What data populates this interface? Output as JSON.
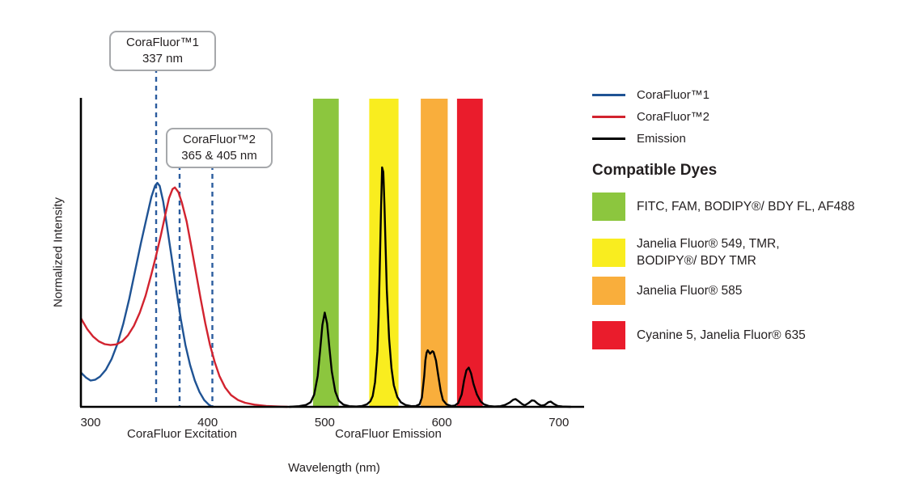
{
  "callouts": [
    {
      "title": "CoraFluor™1",
      "subtitle": "337 nm"
    },
    {
      "title": "CoraFluor™2",
      "subtitle": "365 & 405 nm"
    }
  ],
  "legend": {
    "items": [
      {
        "label": "CoraFluor™1",
        "color": "#1F5394"
      },
      {
        "label": "CoraFluor™2",
        "color": "#D2232F"
      },
      {
        "label": "Emission",
        "color": "#000000"
      }
    ]
  },
  "compatible_dyes": {
    "heading": "Compatible Dyes",
    "items": [
      {
        "color": "#8CC63E",
        "label": "FITC, FAM, BODIPY®/ BDY FL, AF488"
      },
      {
        "color": "#F9ED1F",
        "label": "Janelia Fluor® 549, TMR,\nBODIPY®/ BDY TMR"
      },
      {
        "color": "#F9AE3C",
        "label": "Janelia Fluor® 585"
      },
      {
        "color": "#EA1C2C",
        "label": "Cyanine 5, Janelia Fluor® 635"
      }
    ]
  },
  "chart_data": {
    "type": "line",
    "xlabel": "Wavelength (nm)",
    "ylabel": "Normalized Intensity",
    "x_section_labels": [
      "CoraFluor Excitation",
      "CoraFluor Emission"
    ],
    "x_ticks": [
      300,
      400,
      500,
      600,
      700
    ],
    "x_range": [
      292,
      721
    ],
    "y_range": [
      0,
      1
    ],
    "grid": false,
    "legend_position": "top-right",
    "dashed_marker_color": "#2B5C9E",
    "dashed_lines": [
      {
        "label_nm": 337,
        "x_nm": 356,
        "callout": "CoraFluor™1 337 nm"
      },
      {
        "label_nm": 365,
        "x_nm": 376,
        "callout": "CoraFluor™2 365 & 405 nm"
      },
      {
        "label_nm": 405,
        "x_nm": 404,
        "callout": "CoraFluor™2 365 & 405 nm"
      }
    ],
    "filter_bands": [
      {
        "name": "green",
        "nm": [
          490,
          512
        ],
        "color": "#8CC63E",
        "dyes": "FITC, FAM, BODIPY®/ BDY FL, AF488"
      },
      {
        "name": "yellow",
        "nm": [
          538,
          563
        ],
        "color": "#F9ED1F",
        "dyes": "Janelia Fluor® 549, TMR, BODIPY®/ BDY TMR"
      },
      {
        "name": "orange",
        "nm": [
          582,
          605
        ],
        "color": "#F9AE3C",
        "dyes": "Janelia Fluor® 585"
      },
      {
        "name": "red",
        "nm": [
          613,
          635
        ],
        "color": "#EA1C2C",
        "dyes": "Cyanine 5, Janelia Fluor® 635"
      }
    ],
    "emission_peaks_nm": [
      500,
      549,
      590,
      623,
      663,
      678,
      692
    ],
    "series": [
      {
        "name": "CoraFluor™1 excitation",
        "color": "#1F5394",
        "points": [
          [
            292,
            0.11
          ],
          [
            296,
            0.095
          ],
          [
            300,
            0.085
          ],
          [
            304,
            0.088
          ],
          [
            308,
            0.098
          ],
          [
            313,
            0.12
          ],
          [
            318,
            0.155
          ],
          [
            323,
            0.205
          ],
          [
            328,
            0.27
          ],
          [
            333,
            0.35
          ],
          [
            338,
            0.44
          ],
          [
            343,
            0.53
          ],
          [
            348,
            0.615
          ],
          [
            352,
            0.68
          ],
          [
            355,
            0.715
          ],
          [
            357,
            0.725
          ],
          [
            359,
            0.715
          ],
          [
            362,
            0.665
          ],
          [
            365,
            0.59
          ],
          [
            369,
            0.49
          ],
          [
            373,
            0.385
          ],
          [
            377,
            0.285
          ],
          [
            381,
            0.2
          ],
          [
            385,
            0.135
          ],
          [
            389,
            0.085
          ],
          [
            393,
            0.048
          ],
          [
            397,
            0.022
          ],
          [
            401,
            0.007
          ],
          [
            404,
            0
          ]
        ]
      },
      {
        "name": "CoraFluor™2 excitation",
        "color": "#D2232F",
        "points": [
          [
            292,
            0.285
          ],
          [
            297,
            0.252
          ],
          [
            302,
            0.228
          ],
          [
            307,
            0.212
          ],
          [
            312,
            0.203
          ],
          [
            317,
            0.2
          ],
          [
            322,
            0.202
          ],
          [
            327,
            0.212
          ],
          [
            332,
            0.232
          ],
          [
            337,
            0.262
          ],
          [
            342,
            0.305
          ],
          [
            347,
            0.36
          ],
          [
            352,
            0.43
          ],
          [
            356,
            0.49
          ],
          [
            360,
            0.555
          ],
          [
            364,
            0.625
          ],
          [
            367,
            0.675
          ],
          [
            370,
            0.705
          ],
          [
            372,
            0.71
          ],
          [
            375,
            0.695
          ],
          [
            378,
            0.66
          ],
          [
            382,
            0.6
          ],
          [
            386,
            0.52
          ],
          [
            390,
            0.435
          ],
          [
            394,
            0.35
          ],
          [
            398,
            0.27
          ],
          [
            402,
            0.2
          ],
          [
            406,
            0.145
          ],
          [
            410,
            0.1
          ],
          [
            415,
            0.062
          ],
          [
            420,
            0.038
          ],
          [
            426,
            0.022
          ],
          [
            432,
            0.013
          ],
          [
            440,
            0.007
          ],
          [
            450,
            0.003
          ],
          [
            460,
            0.001
          ],
          [
            468,
            0
          ]
        ]
      },
      {
        "name": "Emission",
        "color": "#000000",
        "points": [
          [
            470,
            0
          ],
          [
            478,
            0.002
          ],
          [
            484,
            0.006
          ],
          [
            488,
            0.015
          ],
          [
            491,
            0.04
          ],
          [
            494,
            0.1
          ],
          [
            496,
            0.18
          ],
          [
            498,
            0.265
          ],
          [
            500,
            0.305
          ],
          [
            502,
            0.27
          ],
          [
            504,
            0.19
          ],
          [
            506,
            0.115
          ],
          [
            509,
            0.05
          ],
          [
            512,
            0.02
          ],
          [
            516,
            0.007
          ],
          [
            521,
            0.002
          ],
          [
            527,
            0.001
          ],
          [
            532,
            0.003
          ],
          [
            536,
            0.008
          ],
          [
            539,
            0.018
          ],
          [
            541,
            0.035
          ],
          [
            543,
            0.08
          ],
          [
            545,
            0.18
          ],
          [
            546,
            0.29
          ],
          [
            547,
            0.45
          ],
          [
            548,
            0.63
          ],
          [
            549,
            0.775
          ],
          [
            550,
            0.76
          ],
          [
            551,
            0.655
          ],
          [
            552,
            0.52
          ],
          [
            553,
            0.38
          ],
          [
            555,
            0.22
          ],
          [
            557,
            0.125
          ],
          [
            559,
            0.07
          ],
          [
            562,
            0.032
          ],
          [
            565,
            0.015
          ],
          [
            569,
            0.006
          ],
          [
            574,
            0.002
          ],
          [
            578,
            0.003
          ],
          [
            581,
            0.008
          ],
          [
            583,
            0.03
          ],
          [
            585,
            0.1
          ],
          [
            586,
            0.15
          ],
          [
            587,
            0.175
          ],
          [
            588,
            0.183
          ],
          [
            590,
            0.172
          ],
          [
            592,
            0.18
          ],
          [
            593,
            0.177
          ],
          [
            595,
            0.15
          ],
          [
            597,
            0.1
          ],
          [
            599,
            0.052
          ],
          [
            601,
            0.022
          ],
          [
            604,
            0.008
          ],
          [
            608,
            0.003
          ],
          [
            611,
            0.004
          ],
          [
            614,
            0.012
          ],
          [
            617,
            0.04
          ],
          [
            619,
            0.085
          ],
          [
            621,
            0.118
          ],
          [
            623,
            0.127
          ],
          [
            625,
            0.108
          ],
          [
            627,
            0.075
          ],
          [
            630,
            0.04
          ],
          [
            633,
            0.018
          ],
          [
            636,
            0.008
          ],
          [
            640,
            0.003
          ],
          [
            645,
            0.001
          ],
          [
            650,
            0.002
          ],
          [
            654,
            0.006
          ],
          [
            658,
            0.014
          ],
          [
            661,
            0.023
          ],
          [
            663,
            0.025
          ],
          [
            666,
            0.017
          ],
          [
            669,
            0.008
          ],
          [
            671,
            0.005
          ],
          [
            674,
            0.012
          ],
          [
            677,
            0.021
          ],
          [
            679,
            0.02
          ],
          [
            682,
            0.01
          ],
          [
            685,
            0.004
          ],
          [
            688,
            0.006
          ],
          [
            691,
            0.015
          ],
          [
            693,
            0.017
          ],
          [
            696,
            0.009
          ],
          [
            699,
            0.003
          ],
          [
            703,
            0.001
          ],
          [
            710,
            0
          ]
        ]
      }
    ]
  }
}
